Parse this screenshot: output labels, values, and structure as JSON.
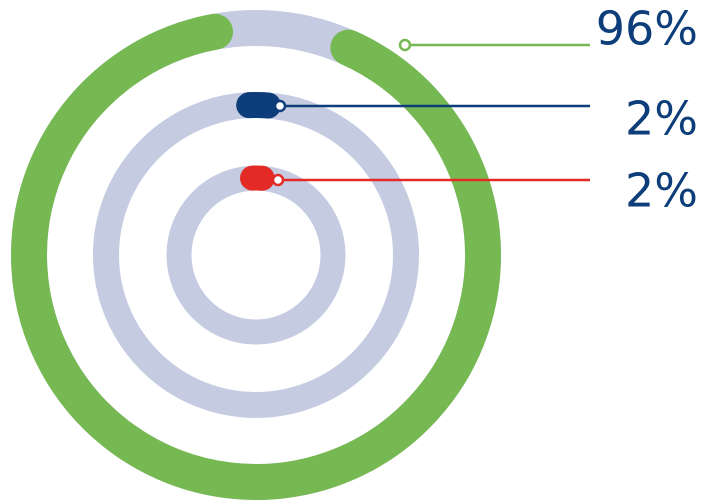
{
  "chart_data": {
    "type": "radial-bar",
    "unit": "%",
    "max": 100,
    "track_color": "#c5cbe1",
    "series": [
      {
        "value": 96,
        "label": "96%",
        "color": "#76b852"
      },
      {
        "value": 2,
        "label": "2%",
        "color": "#0e3e7a"
      },
      {
        "value": 2,
        "label": "2%",
        "color": "#e32a27"
      }
    ],
    "label_color": "#0e3e7a"
  }
}
